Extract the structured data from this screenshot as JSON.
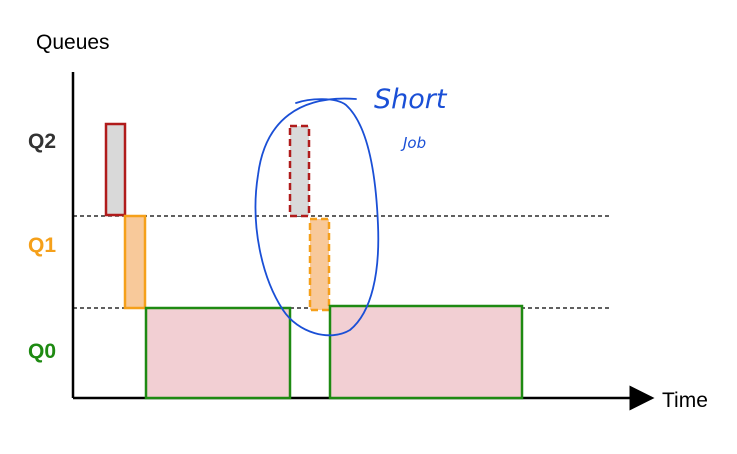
{
  "axis": {
    "y_title": "Queues",
    "x_title": "Time"
  },
  "queues": [
    {
      "id": "q2",
      "label": "Q2",
      "color": "#333333"
    },
    {
      "id": "q1",
      "label": "Q1",
      "color": "#f5a01a"
    },
    {
      "id": "q0",
      "label": "Q0",
      "color": "#1e8a12"
    }
  ],
  "annotation": {
    "line1": "Short",
    "line2": "Job",
    "color": "#1a4fd6"
  },
  "colors": {
    "q2_stroke": "#b01b1b",
    "q2_fill": "#d9d9d9",
    "q1_stroke": "#f5a01a",
    "q1_fill": "#f8c99a",
    "q0_stroke": "#1e8a12",
    "q0_fill": "#f2cfd3"
  }
}
